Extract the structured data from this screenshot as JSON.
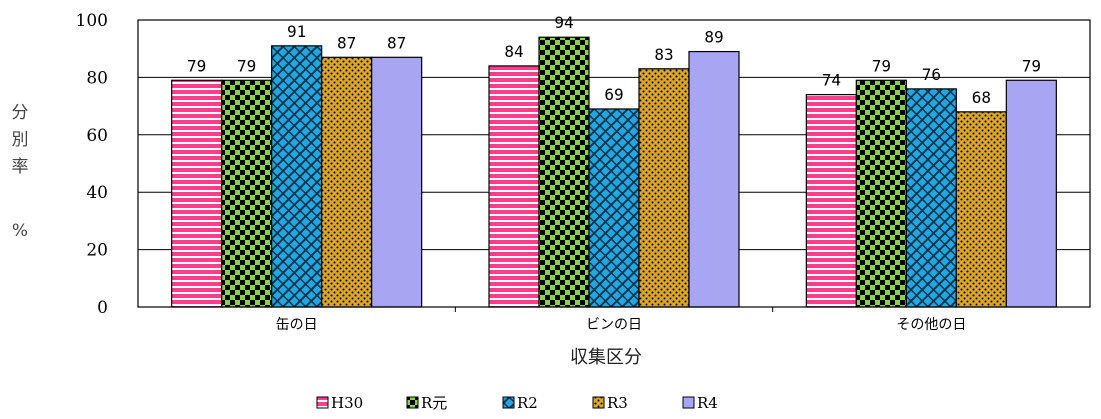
{
  "chart_data": {
    "type": "bar",
    "categories": [
      "缶の日",
      "ビンの日",
      "その他の日"
    ],
    "series": [
      {
        "name": "H30",
        "values": [
          79,
          84,
          74
        ],
        "color": "#ff3d8b",
        "pattern": "hstripe"
      },
      {
        "name": "R元",
        "values": [
          79,
          94,
          79
        ],
        "color": "#88d444",
        "pattern": "checker"
      },
      {
        "name": "R2",
        "values": [
          91,
          69,
          76
        ],
        "color": "#22a8e0",
        "pattern": "diagonal"
      },
      {
        "name": "R3",
        "values": [
          87,
          83,
          68
        ],
        "color": "#d9a52a",
        "pattern": "dots"
      },
      {
        "name": "R4",
        "values": [
          87,
          89,
          79
        ],
        "color": "#a8a6f2",
        "pattern": "solid"
      }
    ],
    "yticks": [
      "0",
      "20",
      "40",
      "60",
      "80",
      "100"
    ],
    "ylim": [
      0,
      100
    ],
    "xlabel": "収集区分",
    "ylabel": [
      "分",
      "別",
      "率",
      "%"
    ],
    "grid": true,
    "legend_position": "bottom"
  }
}
